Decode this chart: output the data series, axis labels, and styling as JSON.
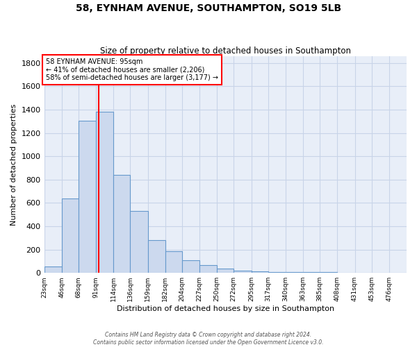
{
  "title": "58, EYNHAM AVENUE, SOUTHAMPTON, SO19 5LB",
  "subtitle": "Size of property relative to detached houses in Southampton",
  "xlabel": "Distribution of detached houses by size in Southampton",
  "ylabel": "Number of detached properties",
  "bar_color": "#ccd9ee",
  "bar_edge_color": "#6699cc",
  "bg_color": "#e8eef8",
  "grid_color": "#c8d4e8",
  "annotation_text": "58 EYNHAM AVENUE: 95sqm\n← 41% of detached houses are smaller (2,206)\n58% of semi-detached houses are larger (3,177) →",
  "red_line_x": 95,
  "footer": "Contains HM Land Registry data © Crown copyright and database right 2024.\nContains public sector information licensed under the Open Government Licence v3.0.",
  "categories": [
    "23sqm",
    "46sqm",
    "68sqm",
    "91sqm",
    "114sqm",
    "136sqm",
    "159sqm",
    "182sqm",
    "204sqm",
    "227sqm",
    "250sqm",
    "272sqm",
    "295sqm",
    "317sqm",
    "340sqm",
    "363sqm",
    "385sqm",
    "408sqm",
    "431sqm",
    "453sqm",
    "476sqm"
  ],
  "bin_edges": [
    23,
    46,
    68,
    91,
    114,
    136,
    159,
    182,
    204,
    227,
    250,
    272,
    295,
    317,
    340,
    363,
    385,
    408,
    431,
    453,
    476,
    499
  ],
  "values": [
    55,
    638,
    1305,
    1380,
    843,
    528,
    282,
    188,
    110,
    65,
    35,
    18,
    15,
    10,
    8,
    6,
    5,
    3,
    2,
    2,
    2
  ],
  "ylim": [
    0,
    1860
  ],
  "yticks": [
    0,
    200,
    400,
    600,
    800,
    1000,
    1200,
    1400,
    1600,
    1800
  ]
}
